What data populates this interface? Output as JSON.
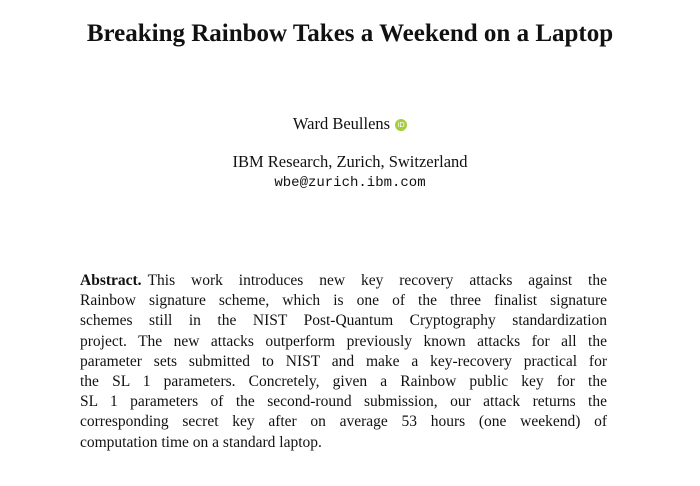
{
  "header": {
    "title": "Breaking Rainbow Takes a Weekend on a Laptop",
    "author": "Ward Beullens",
    "orcid_icon": "iD",
    "affiliation": "IBM Research, Zurich, Switzerland",
    "email": "wbe@zurich.ibm.com"
  },
  "abstract": {
    "label": "Abstract.",
    "lines": [
      "This work introduces new key recovery attacks against the",
      "Rainbow signature scheme, which is one of the three finalist signature",
      "schemes still in the NIST Post-Quantum Cryptography standardization",
      "project. The new attacks outperform previously known attacks for all the",
      "parameter sets submitted to NIST and make a key-recovery practical for",
      "the SL 1 parameters. Concretely, given a Rainbow public key for the",
      "SL 1 parameters of the second-round submission, our attack returns the",
      "corresponding secret key after on average 53 hours (one weekend) of",
      "computation time on a standard laptop."
    ]
  }
}
